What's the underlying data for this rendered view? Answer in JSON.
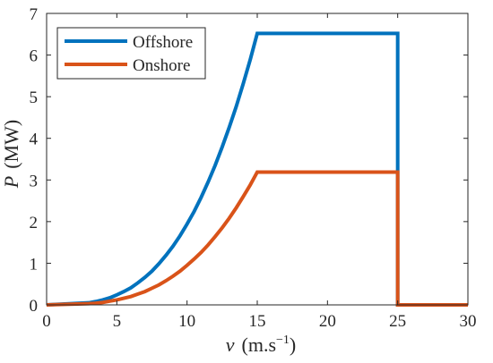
{
  "chart_data": {
    "type": "line",
    "xlabel_var": "v",
    "xlabel_unit": "(m.s",
    "xlabel_exp": "−1",
    "xlabel_close": ")",
    "ylabel_var": "P",
    "ylabel_unit": "(MW)",
    "xlim": [
      0,
      30
    ],
    "ylim": [
      0,
      7
    ],
    "xticks": [
      "0",
      "5",
      "10",
      "15",
      "20",
      "25",
      "30"
    ],
    "yticks": [
      "0",
      "1",
      "2",
      "3",
      "4",
      "5",
      "6",
      "7"
    ],
    "legend_position": "top-left",
    "grid": false,
    "series": [
      {
        "name": "Offshore",
        "color": "#0072BD",
        "x": [
          0,
          3,
          3.5,
          4,
          4.5,
          5,
          5.5,
          6,
          6.5,
          7,
          7.5,
          8,
          8.5,
          9,
          9.5,
          10,
          10.5,
          11,
          11.5,
          12,
          12.5,
          13,
          13.5,
          14,
          14.5,
          15,
          25,
          25,
          30
        ],
        "y": [
          0,
          0.05,
          0.08,
          0.12,
          0.17,
          0.24,
          0.32,
          0.41,
          0.53,
          0.66,
          0.81,
          0.99,
          1.19,
          1.41,
          1.66,
          1.94,
          2.24,
          2.58,
          2.95,
          3.35,
          3.79,
          4.26,
          4.76,
          5.31,
          5.89,
          6.52,
          6.52,
          0,
          0
        ]
      },
      {
        "name": "Onshore",
        "color": "#D95319",
        "x": [
          0,
          3,
          3.5,
          4,
          4.5,
          5,
          5.5,
          6,
          6.5,
          7,
          7.5,
          8,
          8.5,
          9,
          9.5,
          10,
          10.5,
          11,
          11.5,
          12,
          12.5,
          13,
          13.5,
          14,
          14.5,
          15,
          25,
          25,
          30
        ],
        "y": [
          0,
          0.03,
          0.04,
          0.06,
          0.09,
          0.12,
          0.16,
          0.2,
          0.26,
          0.32,
          0.4,
          0.48,
          0.58,
          0.69,
          0.81,
          0.95,
          1.1,
          1.26,
          1.44,
          1.64,
          1.85,
          2.08,
          2.33,
          2.6,
          2.88,
          3.19,
          3.19,
          0,
          0
        ]
      }
    ]
  }
}
